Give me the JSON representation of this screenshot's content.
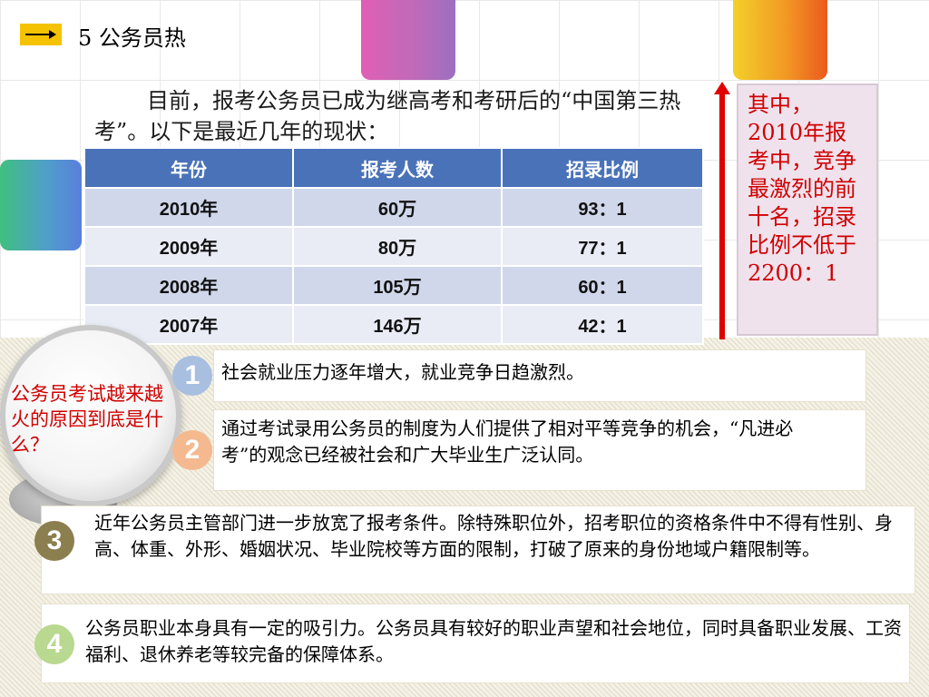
{
  "header": {
    "title": "5 公务员热"
  },
  "intro": "目前，报考公务员已成为继高考和考研后的“中国第三热考”。以下是最近几年的现状：",
  "table": {
    "headers": [
      "年份",
      "报考人数",
      "招录比例"
    ],
    "rows": [
      [
        "2010年",
        "60万",
        "93：1"
      ],
      [
        "2009年",
        "80万",
        "77：1"
      ],
      [
        "2008年",
        "105万",
        "60：1"
      ],
      [
        "2007年",
        "146万",
        "42：1"
      ]
    ]
  },
  "callout": "其中，2010年报考中，竞争最激烈的前十名，招录比例不低于2200：1",
  "question": "公务员考试越来越火的原因到底是什么？",
  "reasons": [
    {
      "num": "1",
      "text": "社会就业压力逐年增大，就业竞争日趋激烈。"
    },
    {
      "num": "2",
      "text": "通过考试录用公务员的制度为人们提供了相对平等竞争的机会，“凡进必考”的观念已经被社会和广大毕业生广泛认同。"
    },
    {
      "num": "3",
      "text": "近年公务员主管部门进一步放宽了报考条件。除特殊职位外，招考职位的资格条件中不得有性别、身高、体重、外形、婚姻状况、毕业院校等方面的限制，打破了原来的身份地域户籍限制等。"
    },
    {
      "num": "4",
      "text": "公务员职业本身具有一定的吸引力。公务员具有较好的职业声望和社会地位，同时具备职业发展、工资福利、退休养老等较完备的保障体系。"
    }
  ],
  "colors": {
    "accent_yellow": "#f5c200",
    "table_header": "#4a72b8",
    "callout_text": "#d00000",
    "num1": "#a9bfe0",
    "num2": "#f4b98f",
    "num3": "#8b7f4f",
    "num4": "#b9d890"
  }
}
